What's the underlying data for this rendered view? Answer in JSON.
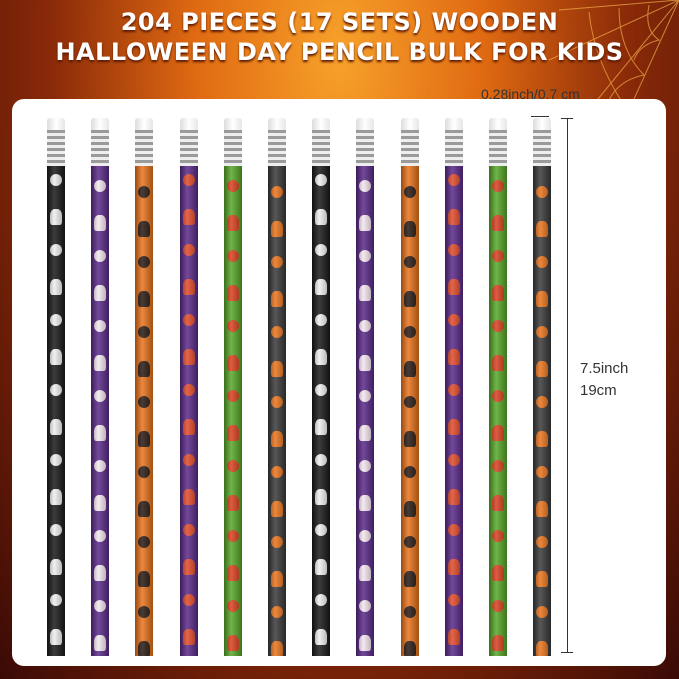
{
  "title": {
    "line1": "204 PIECES (17 SETS) WOODEN",
    "line2": "HALLOWEEN DAY PENCIL BULK FOR KIDS"
  },
  "dimensions": {
    "diameter": "0.28inch/0.7 cm",
    "length_in": "7.5inch",
    "length_cm": "19cm"
  },
  "pencils": [
    {
      "theme": "skeleton",
      "color": "#1a1a1a",
      "motif": "#eeeeee"
    },
    {
      "theme": "ghost",
      "color": "#5b2a8a",
      "motif": "#f3e6ee"
    },
    {
      "theme": "black-cat",
      "color": "#e8731c",
      "motif": "#2a1a14"
    },
    {
      "theme": "ghost-pumpkin",
      "color": "#5b2a8a",
      "motif": "#e04a2a"
    },
    {
      "theme": "spiderweb-pumpkin",
      "color": "#58a82a",
      "motif": "#d8401e"
    },
    {
      "theme": "frankenstein-witch",
      "color": "#3a3a3a",
      "motif": "#e8731c"
    },
    {
      "theme": "skeleton",
      "color": "#1a1a1a",
      "motif": "#eeeeee"
    },
    {
      "theme": "ghost",
      "color": "#5b2a8a",
      "motif": "#f3e6ee"
    },
    {
      "theme": "black-cat",
      "color": "#e8731c",
      "motif": "#2a1a14"
    },
    {
      "theme": "ghost-pumpkin",
      "color": "#5b2a8a",
      "motif": "#e04a2a"
    },
    {
      "theme": "spiderweb-pumpkin",
      "color": "#58a82a",
      "motif": "#d8401e"
    },
    {
      "theme": "frankenstein-witch",
      "color": "#3a3a3a",
      "motif": "#e8731c"
    }
  ]
}
